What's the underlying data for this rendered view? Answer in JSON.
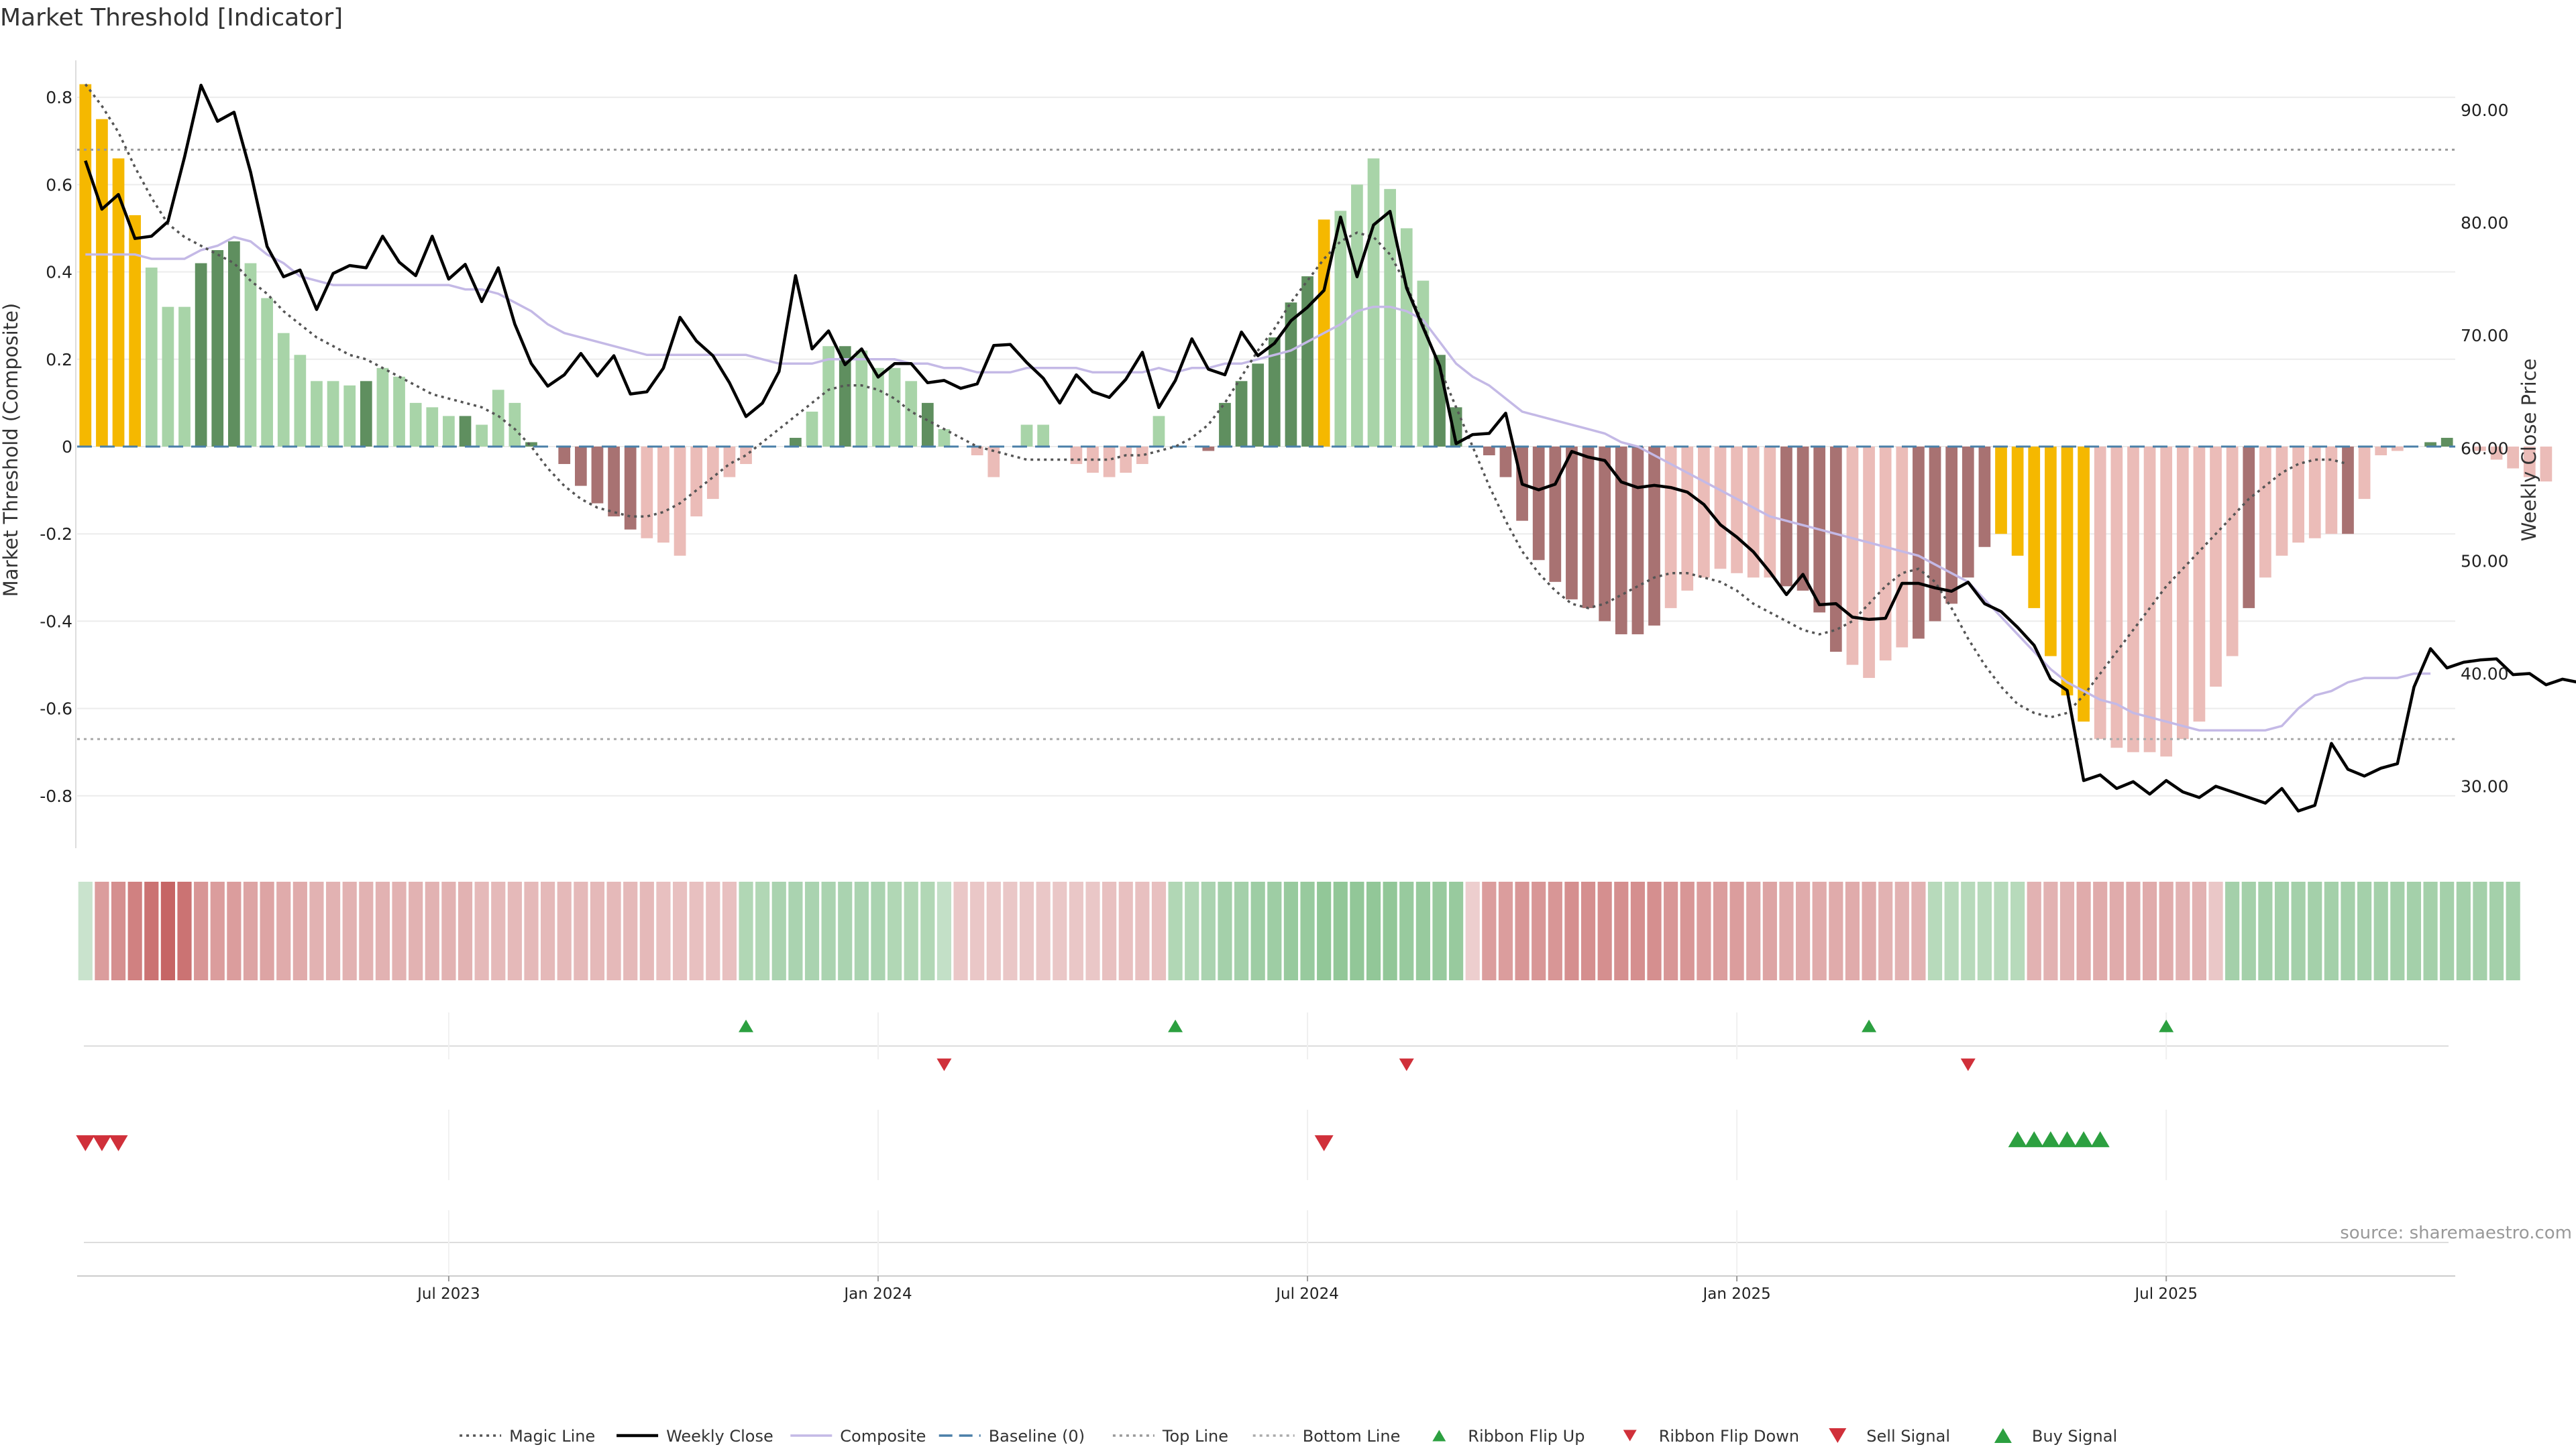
{
  "chart_data": {
    "type": "bar",
    "title": "Market Threshold [Indicator]",
    "ylabel": "Market Threshold (Composite)",
    "y2label": "Weekly Close Price",
    "source": "source: sharemaestro.com",
    "ylim": [
      -0.92,
      0.9
    ],
    "y2lim": [
      24.5,
      95.0
    ],
    "y_ticks": [
      {
        "v": 0.8,
        "label": "0.8"
      },
      {
        "v": 0.6,
        "label": "0.6"
      },
      {
        "v": 0.4,
        "label": "0.4"
      },
      {
        "v": 0.2,
        "label": "0.2"
      },
      {
        "v": 0.0,
        "label": "0"
      },
      {
        "v": -0.2,
        "label": "-0.2"
      },
      {
        "v": -0.4,
        "label": "-0.4"
      },
      {
        "v": -0.6,
        "label": "-0.6"
      },
      {
        "v": -0.8,
        "label": "-0.8"
      }
    ],
    "y2_ticks": [
      {
        "v": 90,
        "label": "90.00"
      },
      {
        "v": 80,
        "label": "80.00"
      },
      {
        "v": 70,
        "label": "70.00"
      },
      {
        "v": 60,
        "label": "60.00"
      },
      {
        "v": 50,
        "label": "50.00"
      },
      {
        "v": 40,
        "label": "40.00"
      },
      {
        "v": 30,
        "label": "30.00"
      }
    ],
    "x_ticks": [
      {
        "week": 22,
        "label": "Jul 2023"
      },
      {
        "week": 48,
        "label": "Jan 2024"
      },
      {
        "week": 74,
        "label": "Jul 2024"
      },
      {
        "week": 100,
        "label": "Jan 2025"
      },
      {
        "week": 126,
        "label": "Jul 2025"
      }
    ],
    "x_range": [
      0,
      143
    ],
    "top_line": 0.68,
    "bottom_line": -0.67,
    "colors": {
      "strong_pos": "#5f8f5f",
      "weak_pos": "#a8d4a8",
      "strong_neg": "#a87272",
      "weak_neg": "#ebbcb8",
      "extreme": "#f5b800",
      "composite": "#c4b9e6",
      "magic": "#555555",
      "close": "#000000",
      "baseline": "#4a7fa8",
      "flip_up": "#2ca040",
      "flip_down": "#d0303a"
    },
    "composite_bars": [
      0.83,
      0.75,
      0.66,
      0.53,
      0.41,
      0.32,
      0.32,
      0.42,
      0.45,
      0.47,
      0.42,
      0.34,
      0.26,
      0.21,
      0.15,
      0.15,
      0.14,
      0.15,
      0.18,
      0.16,
      0.1,
      0.09,
      0.07,
      0.07,
      0.05,
      0.13,
      0.1,
      0.01,
      0.0,
      -0.04,
      -0.09,
      -0.13,
      -0.16,
      -0.19,
      -0.21,
      -0.22,
      -0.25,
      -0.16,
      -0.12,
      -0.07,
      -0.04,
      0.0,
      0.0,
      0.02,
      0.08,
      0.23,
      0.23,
      0.22,
      0.18,
      0.18,
      0.15,
      0.1,
      0.04,
      0.0,
      -0.02,
      -0.07,
      0.0,
      0.05,
      0.05,
      0.0,
      -0.04,
      -0.06,
      -0.07,
      -0.06,
      -0.04,
      0.07,
      0.0,
      0.0,
      -0.01,
      0.1,
      0.15,
      0.19,
      0.25,
      0.33,
      0.39,
      0.52,
      0.54,
      0.6,
      0.66,
      0.59,
      0.5,
      0.38,
      0.21,
      0.09,
      0.0,
      -0.02,
      -0.07,
      -0.17,
      -0.26,
      -0.31,
      -0.35,
      -0.37,
      -0.4,
      -0.43,
      -0.43,
      -0.41,
      -0.37,
      -0.33,
      -0.3,
      -0.28,
      -0.29,
      -0.3,
      -0.3,
      -0.32,
      -0.33,
      -0.38,
      -0.47,
      -0.5,
      -0.53,
      -0.49,
      -0.46,
      -0.44,
      -0.4,
      -0.36,
      -0.3,
      -0.23,
      -0.2,
      -0.25,
      -0.37,
      -0.48,
      -0.57,
      -0.63,
      -0.67,
      -0.69,
      -0.7,
      -0.7,
      -0.71,
      -0.67,
      -0.63,
      -0.55,
      -0.48,
      -0.37,
      -0.3,
      -0.25,
      -0.22,
      -0.21,
      -0.2,
      -0.2,
      -0.12,
      -0.02,
      -0.01,
      0.0,
      0.01,
      0.02,
      0.0,
      -0.01,
      -0.03,
      -0.05,
      -0.07,
      -0.08
    ],
    "bar_colors": "EEEEWWWSSSWWWWWWWSWWWWWSW0WNNNNNNNWWWWW00PPSWWSWW0WN00WPW0WWWWWP0WPSSSSSSSSEWWWWW0NNNNNNNNNNNNNNWWWWWWWNNNNWWWWNNNNNEEEEEEWWWWWWWWWNWWWWPN0WWWNNN",
    "close_prices": [
      85.5,
      81.2,
      82.5,
      78.6,
      78.8,
      80.1,
      85.8,
      92.2,
      89.0,
      89.8,
      84.5,
      77.9,
      75.2,
      75.8,
      72.3,
      75.5,
      76.2,
      76.0,
      78.8,
      76.5,
      75.3,
      78.8,
      75.0,
      76.3,
      73.0,
      76.0,
      71.0,
      67.5,
      65.5,
      66.5,
      68.4,
      66.4,
      68.2,
      64.8,
      65.0,
      67.1,
      71.6,
      69.5,
      68.2,
      65.8,
      62.8,
      64.0,
      66.8,
      75.3,
      68.8,
      70.4,
      67.4,
      68.8,
      66.3,
      67.5,
      67.5,
      65.8,
      66.0,
      65.3,
      65.7,
      69.1,
      69.2,
      67.6,
      66.2,
      64.0,
      66.5,
      65.0,
      64.5,
      66.1,
      68.5,
      63.6,
      66.0,
      69.7,
      67.0,
      66.5,
      70.3,
      68.2,
      69.3,
      71.3,
      72.5,
      74.0,
      80.5,
      75.2,
      79.8,
      81.0,
      74.2,
      70.7,
      67.3,
      60.4,
      61.2,
      61.3,
      63.1,
      56.8,
      56.3,
      56.8,
      59.7,
      59.2,
      58.9,
      57.0,
      56.5,
      56.7,
      56.5,
      56.1,
      55.0,
      53.2,
      52.1,
      50.8,
      49.0,
      47.0,
      48.8,
      46.1,
      46.2,
      45.0,
      44.8,
      44.9,
      48.0,
      48.0,
      47.6,
      47.3,
      48.1,
      46.2,
      45.5,
      44.1,
      42.5,
      39.5,
      38.5,
      30.5,
      31.0,
      29.8,
      30.4,
      29.3,
      30.5,
      29.5,
      29.0,
      30.0,
      29.5,
      29.0,
      28.5,
      29.8,
      27.8,
      28.3,
      33.8,
      31.5,
      30.9,
      31.6,
      32.0,
      38.8,
      42.2,
      40.5,
      41.0,
      41.2,
      41.3,
      39.9,
      40.0,
      39.0,
      39.5,
      39.2
    ],
    "composite_line": [
      0.44,
      0.44,
      0.44,
      0.44,
      0.43,
      0.43,
      0.43,
      0.45,
      0.46,
      0.48,
      0.47,
      0.44,
      0.42,
      0.39,
      0.38,
      0.37,
      0.37,
      0.37,
      0.37,
      0.37,
      0.37,
      0.37,
      0.37,
      0.36,
      0.36,
      0.35,
      0.33,
      0.31,
      0.28,
      0.26,
      0.25,
      0.24,
      0.23,
      0.22,
      0.21,
      0.21,
      0.21,
      0.21,
      0.21,
      0.21,
      0.21,
      0.2,
      0.19,
      0.19,
      0.19,
      0.2,
      0.2,
      0.2,
      0.2,
      0.2,
      0.19,
      0.19,
      0.18,
      0.18,
      0.17,
      0.17,
      0.17,
      0.18,
      0.18,
      0.18,
      0.18,
      0.17,
      0.17,
      0.17,
      0.17,
      0.18,
      0.17,
      0.18,
      0.18,
      0.19,
      0.19,
      0.2,
      0.21,
      0.22,
      0.24,
      0.26,
      0.28,
      0.31,
      0.32,
      0.32,
      0.31,
      0.29,
      0.24,
      0.19,
      0.16,
      0.14,
      0.11,
      0.08,
      0.07,
      0.06,
      0.05,
      0.04,
      0.03,
      0.01,
      0.0,
      -0.02,
      -0.04,
      -0.06,
      -0.08,
      -0.1,
      -0.12,
      -0.14,
      -0.16,
      -0.17,
      -0.18,
      -0.19,
      -0.2,
      -0.21,
      -0.22,
      -0.23,
      -0.24,
      -0.25,
      -0.27,
      -0.29,
      -0.31,
      -0.35,
      -0.39,
      -0.43,
      -0.47,
      -0.51,
      -0.54,
      -0.56,
      -0.58,
      -0.59,
      -0.61,
      -0.62,
      -0.63,
      -0.64,
      -0.65,
      -0.65,
      -0.65,
      -0.65,
      -0.65,
      -0.64,
      -0.6,
      -0.57,
      -0.56,
      -0.54,
      -0.53,
      -0.53,
      -0.53,
      -0.52,
      -0.52
    ],
    "magic_line": [
      0.83,
      0.78,
      0.72,
      0.64,
      0.57,
      0.51,
      0.48,
      0.46,
      0.44,
      0.42,
      0.38,
      0.35,
      0.31,
      0.28,
      0.25,
      0.23,
      0.21,
      0.2,
      0.18,
      0.16,
      0.14,
      0.12,
      0.11,
      0.1,
      0.09,
      0.07,
      0.04,
      0.0,
      -0.05,
      -0.09,
      -0.12,
      -0.14,
      -0.15,
      -0.16,
      -0.16,
      -0.15,
      -0.13,
      -0.1,
      -0.07,
      -0.04,
      -0.02,
      0.01,
      0.04,
      0.07,
      0.1,
      0.13,
      0.14,
      0.14,
      0.13,
      0.11,
      0.08,
      0.06,
      0.04,
      0.02,
      0.0,
      -0.01,
      -0.02,
      -0.03,
      -0.03,
      -0.03,
      -0.03,
      -0.03,
      -0.03,
      -0.02,
      -0.02,
      -0.01,
      0.0,
      0.02,
      0.05,
      0.1,
      0.16,
      0.22,
      0.27,
      0.33,
      0.38,
      0.43,
      0.47,
      0.49,
      0.48,
      0.44,
      0.37,
      0.28,
      0.18,
      0.09,
      0.0,
      -0.09,
      -0.17,
      -0.24,
      -0.29,
      -0.33,
      -0.36,
      -0.37,
      -0.36,
      -0.34,
      -0.32,
      -0.3,
      -0.29,
      -0.29,
      -0.3,
      -0.31,
      -0.33,
      -0.36,
      -0.38,
      -0.4,
      -0.42,
      -0.43,
      -0.42,
      -0.4,
      -0.36,
      -0.32,
      -0.29,
      -0.28,
      -0.31,
      -0.37,
      -0.44,
      -0.5,
      -0.55,
      -0.59,
      -0.61,
      -0.62,
      -0.61,
      -0.57,
      -0.52,
      -0.47,
      -0.42,
      -0.37,
      -0.32,
      -0.28,
      -0.24,
      -0.2,
      -0.16,
      -0.12,
      -0.09,
      -0.06,
      -0.04,
      -0.03,
      -0.03,
      -0.04
    ],
    "ribbon_levels": [
      0.1,
      -0.45,
      -0.55,
      -0.65,
      -0.75,
      -0.85,
      -0.75,
      -0.5,
      -0.45,
      -0.45,
      -0.4,
      -0.4,
      -0.35,
      -0.35,
      -0.3,
      -0.3,
      -0.3,
      -0.3,
      -0.3,
      -0.3,
      -0.3,
      -0.3,
      -0.3,
      -0.3,
      -0.25,
      -0.25,
      -0.25,
      -0.25,
      -0.25,
      -0.25,
      -0.25,
      -0.25,
      -0.25,
      -0.25,
      -0.25,
      -0.2,
      -0.2,
      -0.2,
      -0.2,
      -0.2,
      0.3,
      0.3,
      0.35,
      0.35,
      0.35,
      0.35,
      0.35,
      0.35,
      0.35,
      0.3,
      0.3,
      0.3,
      0.15,
      -0.15,
      -0.15,
      -0.15,
      -0.15,
      -0.15,
      -0.15,
      -0.15,
      -0.15,
      -0.15,
      -0.2,
      -0.2,
      -0.2,
      -0.2,
      0.3,
      0.3,
      0.35,
      0.4,
      0.4,
      0.45,
      0.45,
      0.5,
      0.5,
      0.55,
      0.55,
      0.55,
      0.55,
      0.55,
      0.5,
      0.5,
      0.5,
      0.5,
      -0.1,
      -0.45,
      -0.45,
      -0.5,
      -0.5,
      -0.5,
      -0.55,
      -0.55,
      -0.55,
      -0.55,
      -0.55,
      -0.55,
      -0.5,
      -0.5,
      -0.45,
      -0.45,
      -0.45,
      -0.4,
      -0.4,
      -0.35,
      -0.35,
      -0.35,
      -0.35,
      -0.35,
      -0.35,
      -0.3,
      -0.3,
      -0.3,
      0.25,
      0.25,
      0.25,
      0.25,
      0.25,
      0.25,
      -0.3,
      -0.3,
      -0.3,
      -0.35,
      -0.35,
      -0.35,
      -0.35,
      -0.35,
      -0.35,
      -0.3,
      -0.3,
      -0.15,
      0.4,
      0.4,
      0.4,
      0.4,
      0.4,
      0.4,
      0.4,
      0.4,
      0.4,
      0.4,
      0.4,
      0.4,
      0.4,
      0.4,
      0.4,
      0.4,
      0.4,
      0.4
    ],
    "ribbon_flip_up": [
      40,
      66,
      108,
      126
    ],
    "ribbon_flip_down": [
      52,
      80,
      114
    ],
    "sell_signals": [
      0,
      1,
      2,
      75
    ],
    "buy_signals": [
      117,
      118,
      119,
      120,
      121,
      122
    ],
    "legend": [
      {
        "label": "Magic Line",
        "kind": "dotted",
        "color": "#555555"
      },
      {
        "label": "Weekly Close",
        "kind": "solid",
        "color": "#000000"
      },
      {
        "label": "Composite",
        "kind": "solid",
        "color": "#c4b9e6"
      },
      {
        "label": "Baseline (0)",
        "kind": "dashed",
        "color": "#4a7fa8"
      },
      {
        "label": "Top Line",
        "kind": "dotted",
        "color": "#999999"
      },
      {
        "label": "Bottom Line",
        "kind": "dotted",
        "color": "#aaaaaa"
      },
      {
        "label": "Ribbon Flip Up",
        "kind": "tri-up-small",
        "color": "#2ca040"
      },
      {
        "label": "Ribbon Flip Down",
        "kind": "tri-down-small",
        "color": "#d0303a"
      },
      {
        "label": "Sell Signal",
        "kind": "tri-down",
        "color": "#d0303a"
      },
      {
        "label": "Buy Signal",
        "kind": "tri-up",
        "color": "#2ca040"
      }
    ]
  }
}
